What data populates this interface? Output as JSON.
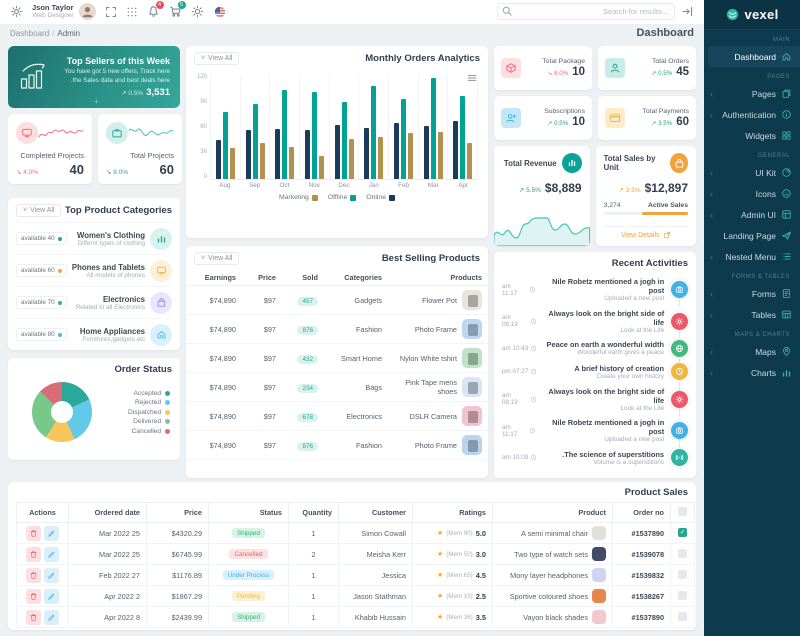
{
  "brand": {
    "name": "vexel"
  },
  "header": {
    "user_name": "Json Taylor",
    "user_role": "Web Designer",
    "bell_badge": "4",
    "cart_badge": "5",
    "search_placeholder": "...Search for results"
  },
  "breadcrumb": {
    "section": "Dashboard",
    "page": "Admin",
    "title": "Dashboard"
  },
  "sidebar": {
    "sections": [
      {
        "label": "MAIN",
        "items": [
          {
            "label": "Dashboard",
            "icon": "home",
            "active": true,
            "expandable": false
          }
        ]
      },
      {
        "label": "PAGES",
        "items": [
          {
            "label": "Pages",
            "icon": "pages",
            "expandable": true
          },
          {
            "label": "Authentication",
            "icon": "auth",
            "expandable": true
          },
          {
            "label": "Widgets",
            "icon": "widgets",
            "expandable": false
          }
        ]
      },
      {
        "label": "GENERAL",
        "items": [
          {
            "label": "UI Kit",
            "icon": "uikit",
            "expandable": true
          },
          {
            "label": "Icons",
            "icon": "icons",
            "expandable": true
          },
          {
            "label": "Admin UI",
            "icon": "adminui",
            "expandable": true
          },
          {
            "label": "Landing Page",
            "icon": "landing",
            "expandable": false
          },
          {
            "label": "Nested Menu",
            "icon": "nested",
            "expandable": true
          }
        ]
      },
      {
        "label": "FORMS & TABLES",
        "items": [
          {
            "label": "Forms",
            "icon": "forms",
            "expandable": true
          },
          {
            "label": "Tables",
            "icon": "tables",
            "expandable": true
          }
        ]
      },
      {
        "label": "MAPS & CHARTS",
        "items": [
          {
            "label": "Maps",
            "icon": "maps",
            "expandable": true
          },
          {
            "label": "Charts",
            "icon": "charts",
            "expandable": true
          }
        ]
      }
    ]
  },
  "top_sellers": {
    "title": "Top Sellers of this Week",
    "description": "You have got 5 new offers, Track here the Sales data and best deals here.",
    "delta": "↗ 0.5%",
    "value": "3,531"
  },
  "project_cards": [
    {
      "label": "Completed Projects",
      "delta": "↘ 4.0%",
      "value": "40",
      "color": "#ee6e77",
      "icon": "monitor",
      "icon_bg": "#fbdfe1",
      "spark": "red"
    },
    {
      "label": "Total Projects",
      "delta": "↘ 8.0%",
      "value": "60",
      "color": "#2aa99b",
      "icon": "briefcase",
      "icon_bg": "#d2efeb",
      "spark": "teal"
    }
  ],
  "top_categories": {
    "title": "Top Product Categories",
    "view_all": "View All",
    "items": [
      {
        "name": "Women's Clothing",
        "desc": "Differnt types of clothing",
        "available": "available 40",
        "dot_color": "#26a594",
        "icon": "charts",
        "icon_bg": "#d9f2ee",
        "icon_color": "#2aa99b"
      },
      {
        "name": "Phones and Tablets",
        "desc": "All models of phones",
        "available": "available 60",
        "dot_color": "#f2a33c",
        "icon": "monitor",
        "icon_bg": "#fdf0d6",
        "icon_color": "#eeb046"
      },
      {
        "name": "Electronics",
        "desc": "Related to all Electronics",
        "available": "available 70",
        "dot_color": "#3bb77e",
        "icon": "bag",
        "icon_bg": "#ebe6f9",
        "icon_color": "#9b85d8"
      },
      {
        "name": "Home Appliances",
        "desc": "Furnitures,gadgets etc.",
        "available": "available 80",
        "dot_color": "#4db7e8",
        "icon": "home",
        "icon_bg": "#dbf0fa",
        "icon_color": "#56b8e4"
      }
    ]
  },
  "order_status": {
    "title": "Order Status",
    "chart_data": {
      "type": "pie",
      "labels": [
        "Accepted",
        "Rejected",
        "Dispatched",
        "Delivered",
        "Cancelled"
      ],
      "values": [
        18,
        25,
        16,
        28,
        13
      ],
      "colors": [
        "#2aa99b",
        "#62c9e8",
        "#f6c65b",
        "#77c98a",
        "#d96d77"
      ]
    }
  },
  "monthly_orders": {
    "title": "Monthly Orders Analytics",
    "view_all": "View All",
    "chart_data": {
      "type": "bar",
      "categories": [
        "Aug",
        "Sep",
        "Oct",
        "Nov",
        "Dec",
        "Jan",
        "Feb",
        "Mar",
        "Apr"
      ],
      "series": [
        {
          "name": "Online",
          "color": "#1a3b5c",
          "values": [
            44,
            55,
            57,
            56,
            61,
            58,
            63,
            60,
            66
          ]
        },
        {
          "name": "Offline",
          "color": "#04a294",
          "values": [
            76,
            85,
            101,
            98,
            87,
            105,
            91,
            114,
            94
          ]
        },
        {
          "name": "Marketing",
          "color": "#b2914f",
          "values": [
            35,
            41,
            36,
            26,
            45,
            48,
            52,
            53,
            41
          ]
        }
      ],
      "legend_order": [
        "Marketing",
        "Offline",
        "Online"
      ],
      "ylim": [
        0,
        120
      ],
      "yticks": [
        120,
        90,
        60,
        30,
        0
      ]
    }
  },
  "best_selling": {
    "title": "Best Selling Products",
    "view_all": "View All",
    "columns": [
      "Earnings",
      "Price",
      "Sold",
      "Categories",
      "Products"
    ],
    "rows": [
      {
        "earnings": "$74,890",
        "price": "$97",
        "sold": "457",
        "category": "Gadgets",
        "product": "Flower Pot",
        "thumb": "#e8e4e0"
      },
      {
        "earnings": "$74,890",
        "price": "$97",
        "sold": "876",
        "category": "Fashion",
        "product": "Photo Frame",
        "thumb": "#bcd8f0"
      },
      {
        "earnings": "$74,890",
        "price": "$97",
        "sold": "432",
        "category": "Smart Home",
        "product": "Nylon White tshirt",
        "thumb": "#bfe3c8"
      },
      {
        "earnings": "$74,890",
        "price": "$97",
        "sold": "234",
        "category": "Bags",
        "product": "Pink Tape mens shoes",
        "thumb": "#d8e6f4"
      },
      {
        "earnings": "$74,890",
        "price": "$97",
        "sold": "678",
        "category": "Electronics",
        "product": "DSLR Camera",
        "thumb": "#f2c3cf"
      },
      {
        "earnings": "$74,890",
        "price": "$97",
        "sold": "876",
        "category": "Fashion",
        "product": "Photo Frame",
        "thumb": "#b8d4ee"
      }
    ]
  },
  "stat_cards": [
    {
      "label": "Total Package",
      "delta": "↘ 8.0%",
      "delta_color": "#ee6e77",
      "value": "10",
      "icon": "box",
      "icon_bg": "#fbdfe1",
      "icon_color": "#ee6e77"
    },
    {
      "label": "Total Orders",
      "delta": "↗ 0.5%",
      "delta_color": "#2f9e77",
      "value": "45",
      "icon": "person",
      "icon_bg": "#c8ece7",
      "icon_color": "#27a18f"
    },
    {
      "label": "Subscriptions",
      "delta": "↗ 0.5%",
      "delta_color": "#2f9e77",
      "value": "10",
      "icon": "personplus",
      "icon_bg": "#c3e7f7",
      "icon_color": "#4aafdd"
    },
    {
      "label": "Total Payments",
      "delta": "↗ 3.5%",
      "delta_color": "#2f9e77",
      "value": "60",
      "icon": "card",
      "icon_bg": "#fdecc8",
      "icon_color": "#edb95e"
    }
  ],
  "total_revenue": {
    "title": "Total Revenue",
    "delta": "↗ 5.5%",
    "delta_color": "#2f9e77",
    "value": "$8,889"
  },
  "total_sales_unit": {
    "title": "Total Sales by Unit",
    "delta": "↗ 3.5%",
    "delta_color": "#f2a33c",
    "value": "$12,897",
    "progress_left": "3,274",
    "progress_right": "Active Sales",
    "progress_pct": 55,
    "link": "View Details"
  },
  "recent_activities": {
    "title": "Recent Activities",
    "items": [
      {
        "title": "Nile Robetz mentioned a jogh in post",
        "subtitle": "Uploaded a new post",
        "time": "am 11:17",
        "icon": "camera",
        "color": "#41b1e6"
      },
      {
        "title": "Always look on the bright side of life",
        "subtitle": "Look at the Life",
        "time": "am 08:19",
        "icon": "gear",
        "color": "#ee5866"
      },
      {
        "title": "Peace on earth a wonderful width",
        "subtitle": "Wonderful earth gives a peace",
        "time": "am 10:43",
        "icon": "globe",
        "color": "#43b97f"
      },
      {
        "title": "A brief history of creation",
        "subtitle": "Create your own history",
        "time": "pm 07:27",
        "icon": "clock",
        "color": "#f2b53c"
      },
      {
        "title": "Always look on the bright side of life",
        "subtitle": "Look at the Life",
        "time": "am 08:19",
        "icon": "gear",
        "color": "#ee5866"
      },
      {
        "title": "Nile Robetz mentioned a jogh in post",
        "subtitle": "Uploaded a new post",
        "time": "am 11:17",
        "icon": "camera",
        "color": "#41b1e6"
      },
      {
        "title": "The science of superstitions.",
        "subtitle": "Volume is a superstitions",
        "time": "am 10:09",
        "icon": "wifi",
        "color": "#2fb5a0"
      }
    ]
  },
  "product_sales": {
    "title": "Product Sales",
    "columns": [
      "Actions",
      "Ordered date",
      "Price",
      "Status",
      "Quantity",
      "Customer",
      "Ratings",
      "Product",
      "Order no"
    ],
    "rows": [
      {
        "date": "Mar 2022 25",
        "price": "$4320.29",
        "status": "Shipped",
        "qty": "1",
        "customer": "Simon Cowall",
        "rating_mem": "(Mem 90)",
        "rating": "5.0",
        "product": "A semi minimal chair",
        "thumb": "#e3e0dc",
        "order": "#1537890",
        "checked": true
      },
      {
        "date": "Mar 2022 25",
        "price": "$6745.99",
        "status": "Cancelled",
        "qty": "2",
        "customer": "Meisha Kerr",
        "rating_mem": "(Mem 50)",
        "rating": "3.0",
        "product": "Two type of watch sets",
        "thumb": "#454b66",
        "order": "#1539078",
        "checked": false
      },
      {
        "date": "Feb 2022 27",
        "price": "$1176.89",
        "status": "Under Process",
        "qty": "1",
        "customer": "Jessica",
        "rating_mem": "(Mem 65)",
        "rating": "4.5",
        "product": "Mony layer headphones",
        "thumb": "#cfd4f2",
        "order": "#1539832",
        "checked": false
      },
      {
        "date": "Apr 2022 2",
        "price": "$1867.29",
        "status": "Pending",
        "qty": "1",
        "customer": "Jason Stathman",
        "rating_mem": "(Mem 15)",
        "rating": "2.5",
        "product": "Sportive coloured shoes",
        "thumb": "#e8864f",
        "order": "#1538267",
        "checked": false
      },
      {
        "date": "Apr 2022 8",
        "price": "$2439.99",
        "status": "Shipped",
        "qty": "1",
        "customer": "Khabib Hussain",
        "rating_mem": "(Mem 36)",
        "rating": "3.5",
        "product": "Vayon black shades",
        "thumb": "#f3c7ce",
        "order": "#1537890",
        "checked": false
      }
    ],
    "status_styles": {
      "Shipped": {
        "bg": "#d8f3e4",
        "color": "#34b377"
      },
      "Cancelled": {
        "bg": "#fde2e4",
        "color": "#ee5866"
      },
      "Under Process": {
        "bg": "#d9f0fb",
        "color": "#45b2e8"
      },
      "Pending": {
        "bg": "#fdf2d0",
        "color": "#efb73e"
      }
    }
  }
}
